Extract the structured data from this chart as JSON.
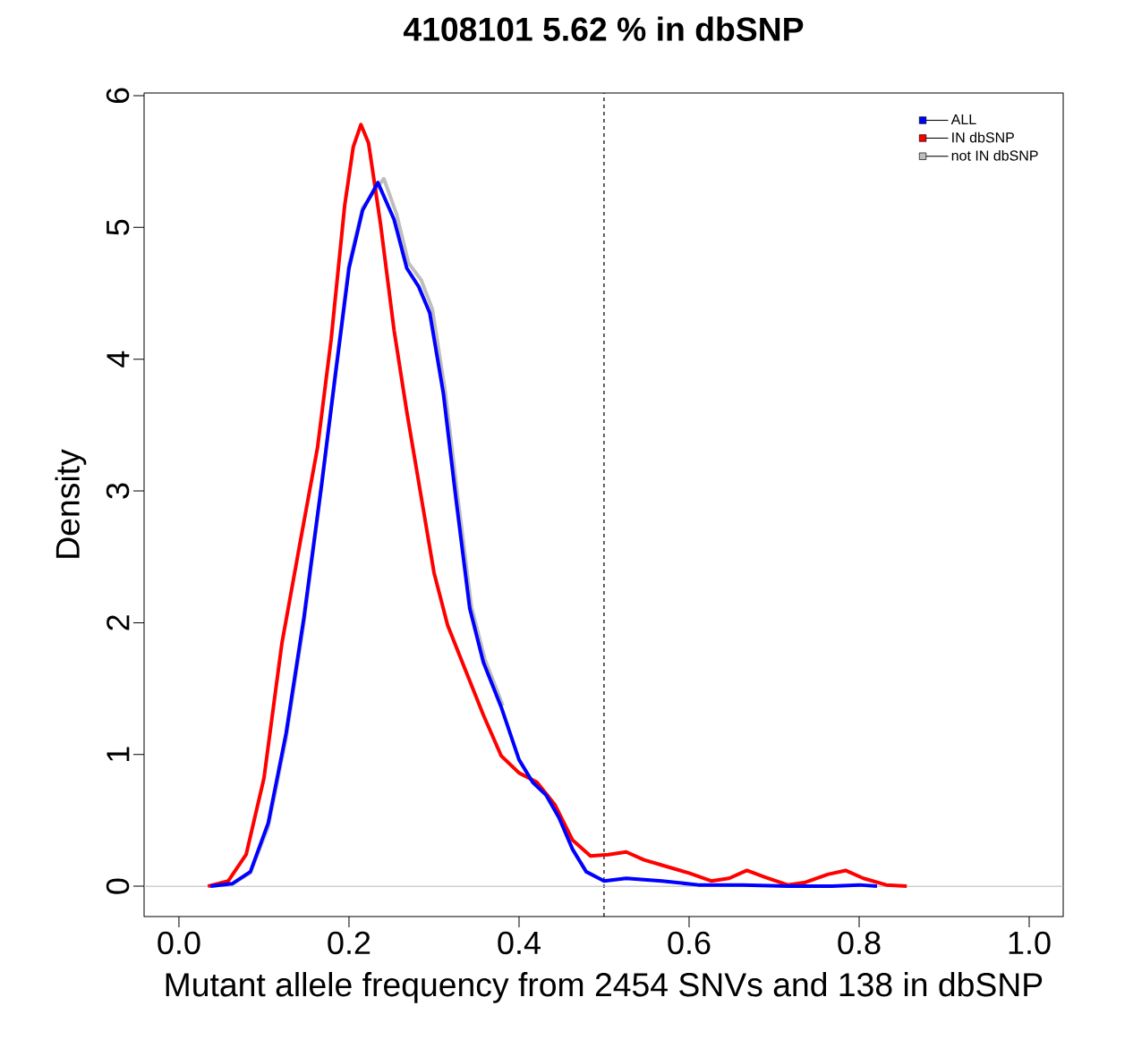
{
  "chart_data": {
    "type": "line",
    "title": "4108101 5.62 % in dbSNP",
    "xlabel": "Mutant allele frequency from 2454 SNVs and 138 in dbSNP",
    "ylabel": "Density",
    "xlim": [
      -0.041,
      1.04
    ],
    "ylim": [
      -0.23,
      6.02
    ],
    "xticks": [
      {
        "value": 0,
        "label": "0.0"
      },
      0.2,
      0.4,
      0.6,
      0.8,
      {
        "value": 1,
        "label": "1.0"
      }
    ],
    "yticks": [
      0,
      1,
      2,
      3,
      4,
      5,
      6
    ],
    "grid": false,
    "legend": "top right",
    "marker": "none",
    "line_style": "solid",
    "ref_lines": [
      {
        "axis": "x",
        "value": 0.5,
        "label": null,
        "color": "#000000",
        "line_style": "dashed"
      },
      {
        "axis": "y",
        "value": 0,
        "label": null,
        "color": "#bebebe",
        "line_style": "solid"
      }
    ],
    "series": [
      {
        "name": "ALL",
        "color": "#0000ff",
        "x": [
          0.037,
          0.063,
          0.084,
          0.105,
          0.126,
          0.147,
          0.168,
          0.184,
          0.2,
          0.216,
          0.234,
          0.253,
          0.268,
          0.282,
          0.295,
          0.311,
          0.326,
          0.342,
          0.358,
          0.379,
          0.4,
          0.416,
          0.432,
          0.447,
          0.463,
          0.479,
          0.5,
          0.526,
          0.568,
          0.611,
          0.663,
          0.716,
          0.768,
          0.8,
          0.821
        ],
        "values": [
          0,
          0.02,
          0.11,
          0.48,
          1.16,
          2.04,
          3.06,
          3.88,
          4.69,
          5.13,
          5.34,
          5.06,
          4.69,
          4.55,
          4.35,
          3.74,
          2.93,
          2.11,
          1.7,
          1.36,
          0.96,
          0.79,
          0.69,
          0.52,
          0.28,
          0.11,
          0.04,
          0.06,
          0.04,
          0.01,
          0.01,
          0,
          0,
          0.01,
          0
        ]
      },
      {
        "name": "IN dbSNP",
        "color": "#ff0000",
        "x": [
          0.034,
          0.058,
          0.079,
          0.1,
          0.121,
          0.142,
          0.163,
          0.179,
          0.195,
          0.205,
          0.214,
          0.223,
          0.237,
          0.253,
          0.268,
          0.284,
          0.3,
          0.316,
          0.337,
          0.358,
          0.379,
          0.4,
          0.421,
          0.442,
          0.463,
          0.484,
          0.505,
          0.526,
          0.547,
          0.568,
          0.6,
          0.626,
          0.647,
          0.668,
          0.689,
          0.716,
          0.737,
          0.763,
          0.784,
          0.805,
          0.832,
          0.856
        ],
        "values": [
          0,
          0.04,
          0.24,
          0.82,
          1.84,
          2.59,
          3.33,
          4.15,
          5.17,
          5.61,
          5.78,
          5.64,
          5.03,
          4.22,
          3.6,
          2.99,
          2.38,
          1.98,
          1.64,
          1.3,
          0.99,
          0.86,
          0.79,
          0.62,
          0.35,
          0.23,
          0.24,
          0.26,
          0.2,
          0.16,
          0.1,
          0.04,
          0.06,
          0.12,
          0.07,
          0.01,
          0.03,
          0.09,
          0.12,
          0.06,
          0.01,
          0
        ]
      },
      {
        "name": "not IN dbSNP",
        "color": "#bebebe",
        "x": [
          0.037,
          0.063,
          0.084,
          0.105,
          0.126,
          0.147,
          0.168,
          0.184,
          0.2,
          0.216,
          0.241,
          0.256,
          0.27,
          0.285,
          0.298,
          0.313,
          0.328,
          0.344,
          0.36,
          0.381
        ],
        "values": [
          0,
          0.02,
          0.1,
          0.45,
          1.12,
          2.0,
          3.05,
          3.9,
          4.72,
          5.15,
          5.37,
          5.1,
          4.73,
          4.6,
          4.38,
          3.76,
          2.95,
          2.12,
          1.72,
          1.37
        ]
      }
    ]
  }
}
